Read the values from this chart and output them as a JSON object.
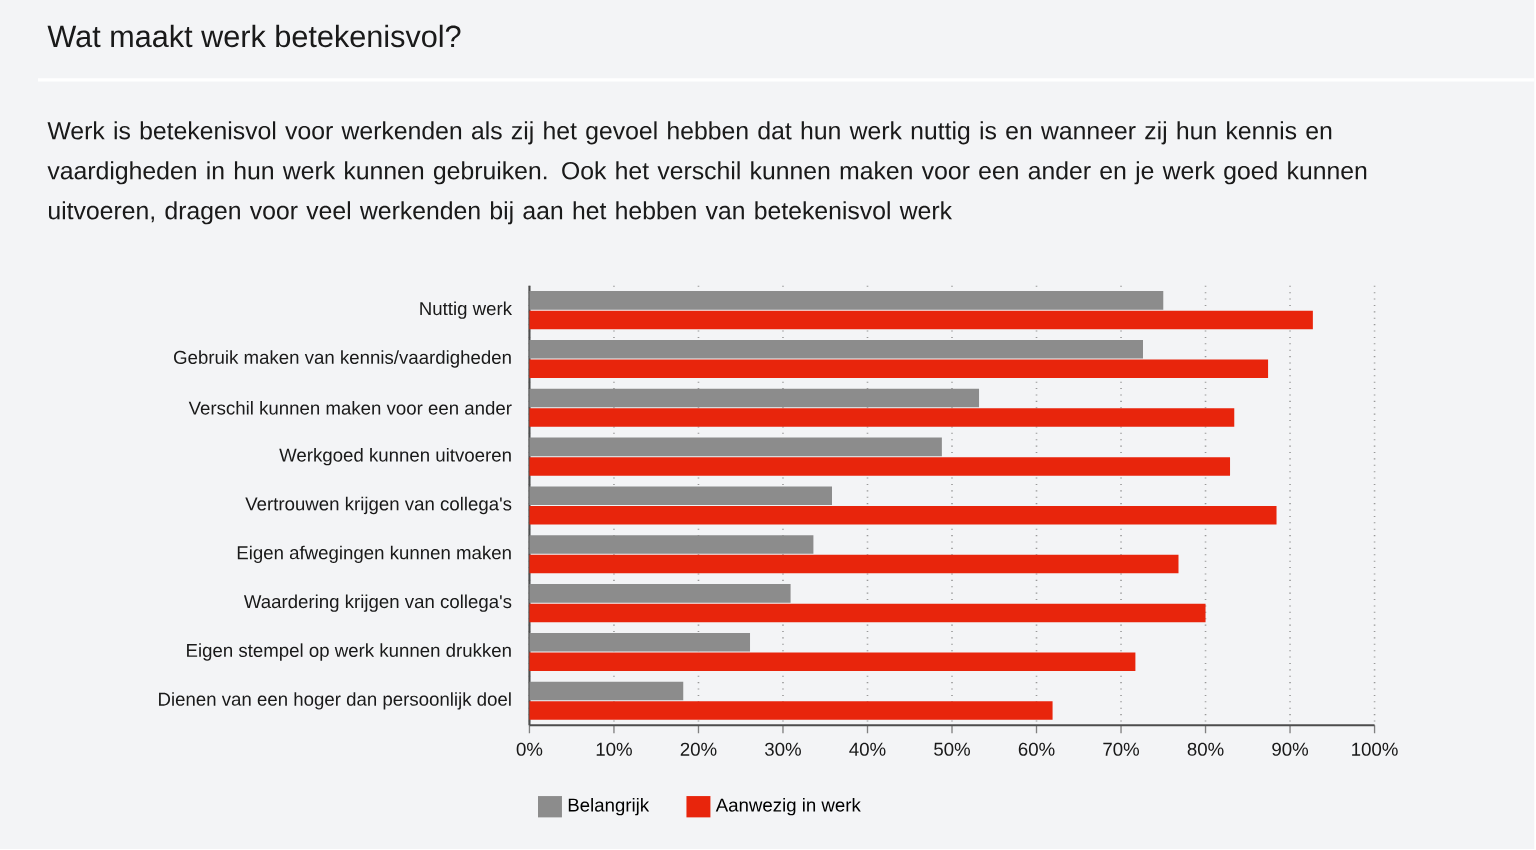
{
  "chart_data": {
    "type": "bar",
    "orientation": "horizontal",
    "title": "Wat maakt werk betekenisvol?",
    "subtitle": "Werk is betekenisvol voor werkenden als zij het gevoel hebben dat hun werk nuttig is en wanneer zij hun kennis en vaardigheden in hun werk kunnen gebruiken. Ook het verschil kunnen maken voor een ander en je werk goed kunnen uitvoeren, dragen voor veel werkenden bij aan het hebben van betekenisvol werk",
    "categories": [
      "Nuttig werk",
      "Gebruik maken van kennis/vaardigheden",
      "Verschil kunnen maken voor een ander",
      "Werkgoed kunnen uitvoeren",
      "Vertrouwen krijgen van collega's",
      "Eigen afwegingen kunnen maken",
      "Waardering  krijgen van collega's",
      "Eigen stempel op werk kunnen drukken",
      "Dienen van een hoger dan persoonlijk doel"
    ],
    "series": [
      {
        "name": "Belangrijk",
        "color": "#8c8c8c",
        "values": [
          75,
          72.6,
          53.2,
          48.8,
          35.8,
          33.6,
          30.9,
          26.1,
          18.2
        ]
      },
      {
        "name": "Aanwezig in werk",
        "color": "#e8250c",
        "values": [
          92.7,
          87.4,
          83.4,
          82.9,
          88.4,
          76.8,
          80.0,
          71.7,
          61.9
        ]
      }
    ],
    "xlim": [
      0,
      100
    ],
    "xticks": [
      {
        "value": 0,
        "label": "0%"
      },
      {
        "value": 10,
        "label": "10%"
      },
      {
        "value": 20,
        "label": "20%"
      },
      {
        "value": 30,
        "label": "30%"
      },
      {
        "value": 40,
        "label": "40%"
      },
      {
        "value": 50,
        "label": "50%"
      },
      {
        "value": 60,
        "label": "60%"
      },
      {
        "value": 70,
        "label": "70%"
      },
      {
        "value": 80,
        "label": "80%"
      },
      {
        "value": 90,
        "label": "90%"
      },
      {
        "value": 100,
        "label": "100%"
      }
    ],
    "grid": "x",
    "legend": "bottom left"
  }
}
